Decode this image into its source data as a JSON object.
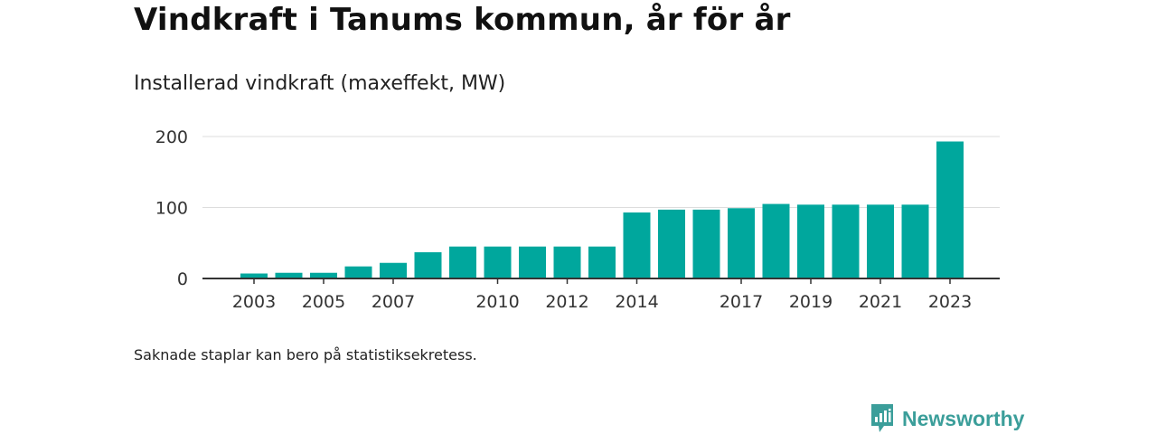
{
  "header": {
    "title": "Vindkraft i Tanums kommun, år för år",
    "subtitle": "Installerad vindkraft (maxeffekt, MW)"
  },
  "footer": {
    "note": "Saknade staplar kan bero på statistiksekretess.",
    "brand": "Newsworthy"
  },
  "colors": {
    "bar": "#00a79d",
    "grid": "#dddddd",
    "axis": "#333333",
    "brand": "#3b9e9a"
  },
  "chart_data": {
    "type": "bar",
    "categories": [
      "2003",
      "2004",
      "2005",
      "2006",
      "2007",
      "2008",
      "2009",
      "2010",
      "2011",
      "2012",
      "2013",
      "2014",
      "2015",
      "2016",
      "2017",
      "2018",
      "2019",
      "2020",
      "2021",
      "2022",
      "2023"
    ],
    "values": [
      7,
      8,
      8,
      17,
      22,
      37,
      45,
      45,
      45,
      45,
      45,
      93,
      97,
      97,
      99,
      105,
      104,
      104,
      104,
      104,
      193
    ],
    "x_tick_labels": [
      "2003",
      "2005",
      "2007",
      "2010",
      "2012",
      "2014",
      "2017",
      "2019",
      "2021",
      "2023"
    ],
    "y_ticks": [
      0,
      100,
      200
    ],
    "ylim": [
      0,
      200
    ],
    "grid": true,
    "legend": "none"
  }
}
